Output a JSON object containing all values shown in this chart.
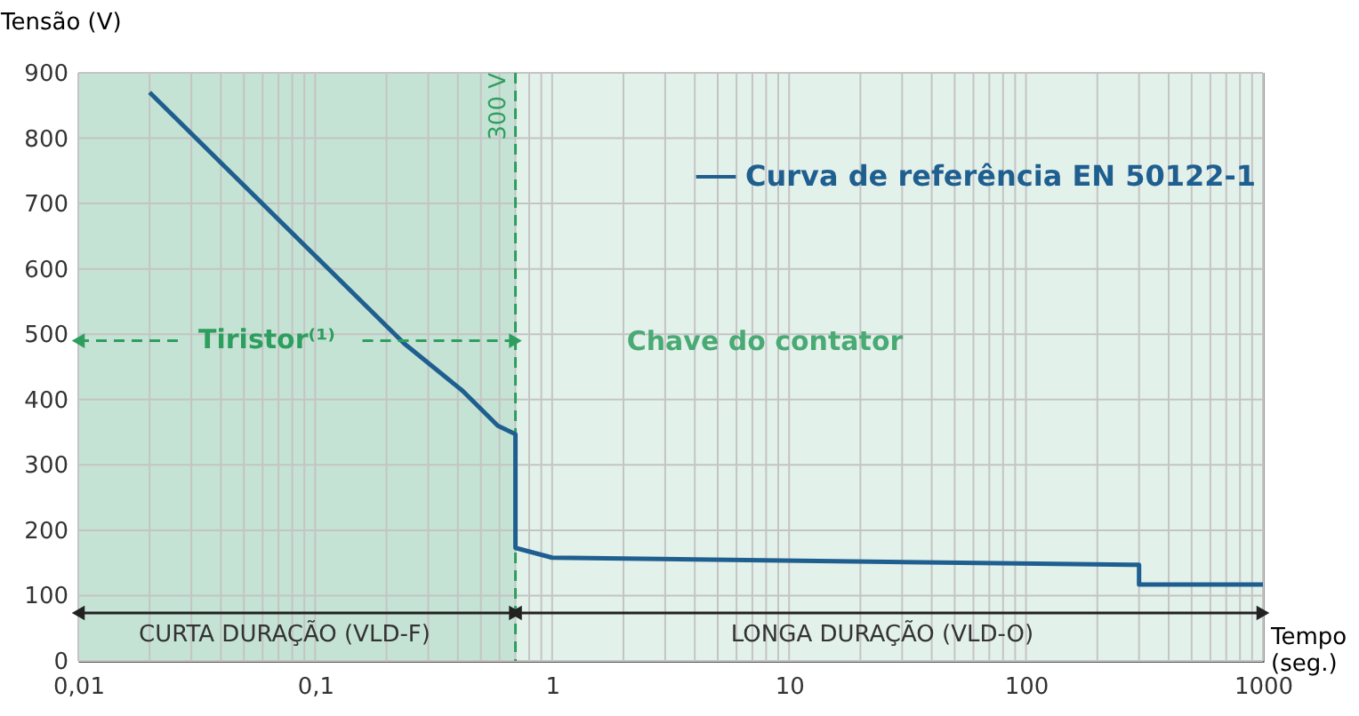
{
  "chart_data": {
    "type": "line",
    "xlabel": "Tempo (seg.)",
    "ylabel": "Tensão (V)",
    "log": "x",
    "xlim": [
      0.01,
      1000
    ],
    "ylim": [
      0,
      900
    ],
    "xticks": [
      {
        "value": 0.01,
        "label": "0,01"
      },
      {
        "value": 0.02,
        "label": null
      },
      {
        "value": 0.03,
        "label": null
      },
      {
        "value": 0.04,
        "label": null
      },
      {
        "value": 0.05,
        "label": null
      },
      {
        "value": 0.06,
        "label": null
      },
      {
        "value": 0.07,
        "label": null
      },
      {
        "value": 0.08,
        "label": null
      },
      {
        "value": 0.09,
        "label": null
      },
      {
        "value": 0.1,
        "label": "0,1"
      },
      {
        "value": 0.2,
        "label": null
      },
      {
        "value": 0.3,
        "label": null
      },
      {
        "value": 0.4,
        "label": null
      },
      {
        "value": 0.5,
        "label": null
      },
      {
        "value": 0.6,
        "label": null
      },
      {
        "value": 0.7,
        "label": null
      },
      {
        "value": 0.8,
        "label": null
      },
      {
        "value": 0.9,
        "label": null
      },
      1,
      {
        "value": 2,
        "label": null
      },
      {
        "value": 3,
        "label": null
      },
      {
        "value": 4,
        "label": null
      },
      {
        "value": 5,
        "label": null
      },
      {
        "value": 6,
        "label": null
      },
      {
        "value": 7,
        "label": null
      },
      {
        "value": 8,
        "label": null
      },
      {
        "value": 9,
        "label": null
      },
      10,
      {
        "value": 20,
        "label": null
      },
      {
        "value": 30,
        "label": null
      },
      {
        "value": 40,
        "label": null
      },
      {
        "value": 50,
        "label": null
      },
      {
        "value": 60,
        "label": null
      },
      {
        "value": 70,
        "label": null
      },
      {
        "value": 80,
        "label": null
      },
      {
        "value": 90,
        "label": null
      },
      100,
      {
        "value": 200,
        "label": null
      },
      {
        "value": 300,
        "label": null
      },
      {
        "value": 400,
        "label": null
      },
      {
        "value": 500,
        "label": null
      },
      {
        "value": 600,
        "label": null
      },
      {
        "value": 700,
        "label": null
      },
      {
        "value": 800,
        "label": null
      },
      {
        "value": 900,
        "label": null
      },
      1000
    ],
    "yticks": [
      0,
      100,
      200,
      300,
      400,
      500,
      600,
      700,
      800,
      900
    ],
    "grid": true,
    "legend": "top right",
    "marker": "none",
    "line_style": "solid",
    "series": [
      {
        "name": "Curva de referência EN 50122-1",
        "color": "#1f5f8f",
        "x": [
          0.02,
          0.237,
          0.42,
          0.59,
          0.7,
          0.7,
          1,
          300,
          300,
          1000
        ],
        "values": [
          870,
          486,
          413,
          360,
          347,
          173,
          158,
          147,
          117,
          117
        ]
      }
    ],
    "bands": [
      {
        "axis": "x",
        "from": 0.01,
        "to": 0.7,
        "color": "#c5e3d4"
      },
      {
        "axis": "x",
        "from": 0.7,
        "to": 1000,
        "color": "#e3f1eb"
      }
    ],
    "ref_lines": [
      {
        "axis": "x",
        "value": 0.7,
        "label": "300 V",
        "color": "#2e9e5e",
        "line_style": "dashed"
      }
    ],
    "annotations": [
      {
        "text": "Tiristor⁽¹⁾",
        "x": 0.7,
        "y": 490
      },
      "Chave do contator",
      "CURTA DURAÇÃO (VLD-F)",
      "LONGA DURAÇÃO (VLD-O)"
    ]
  }
}
